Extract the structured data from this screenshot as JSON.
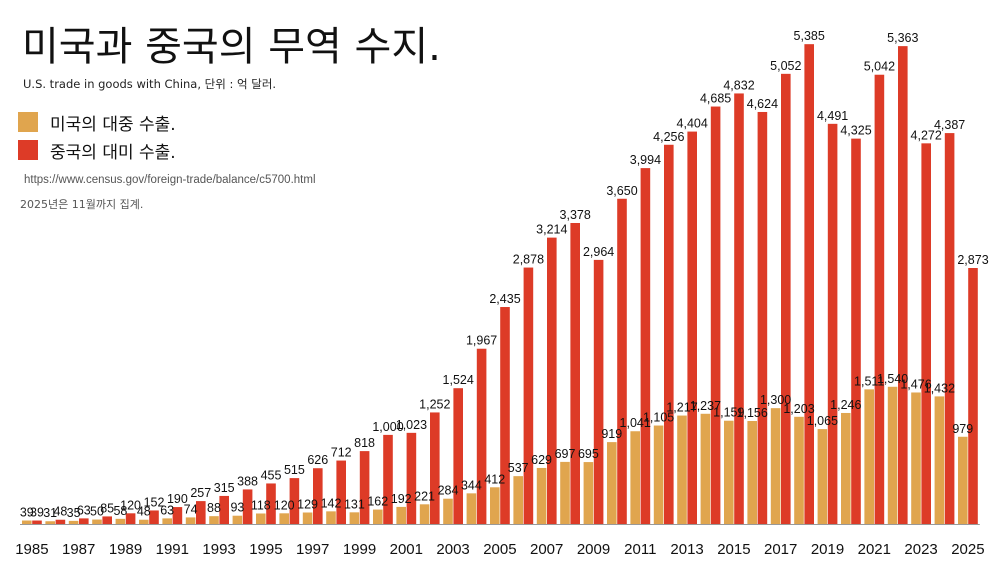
{
  "header": {
    "title": "미국과 중국의 무역 수지.",
    "subtitle": "U.S. trade in goods with China, 단위 : 억 달러."
  },
  "legend": [
    {
      "label": "미국의 대중 수출.",
      "color": "#E0A54E"
    },
    {
      "label": "중국의 대미 수출.",
      "color": "#DD3B27"
    }
  ],
  "source": "https://www.census.gov/foreign-trade/balance/c5700.html",
  "note": "2025년은 11월까지 집계.",
  "chart_data": {
    "type": "bar",
    "title": "미국과 중국의 무역 수지.",
    "subtitle": "U.S. trade in goods with China, 단위 : 억 달러.",
    "xlabel": "",
    "ylabel": "",
    "unit": "억 달러",
    "ylim": [
      0,
      5800
    ],
    "grid": false,
    "legend_position": "top-left",
    "categories": [
      "1985",
      "1986",
      "1987",
      "1988",
      "1989",
      "1990",
      "1991",
      "1992",
      "1993",
      "1994",
      "1995",
      "1996",
      "1997",
      "1998",
      "1999",
      "2000",
      "2001",
      "2002",
      "2003",
      "2004",
      "2005",
      "2006",
      "2007",
      "2008",
      "2009",
      "2010",
      "2011",
      "2012",
      "2013",
      "2014",
      "2015",
      "2016",
      "2017",
      "2018",
      "2019",
      "2020",
      "2021",
      "2022",
      "2023",
      "2024",
      "2025"
    ],
    "tick_labels": [
      "1985",
      "1987",
      "1989",
      "1991",
      "1993",
      "1995",
      "1997",
      "1999",
      "2001",
      "2003",
      "2005",
      "2007",
      "2009",
      "2011",
      "2013",
      "2015",
      "2017",
      "2019",
      "2021",
      "2023",
      "2025"
    ],
    "series": [
      {
        "name": "미국의 대중 수출.",
        "color": "#E0A54E",
        "values": [
          39,
          31,
          35,
          50,
          58,
          48,
          63,
          74,
          88,
          93,
          118,
          120,
          129,
          142,
          131,
          162,
          192,
          221,
          284,
          344,
          412,
          537,
          629,
          697,
          695,
          919,
          1041,
          1105,
          1217,
          1237,
          1159,
          1156,
          1300,
          1203,
          1065,
          1246,
          1511,
          1540,
          1476,
          1432,
          979
        ]
      },
      {
        "name": "중국의 대미 수출.",
        "color": "#DD3B27",
        "values": [
          39,
          48,
          63,
          85,
          120,
          152,
          190,
          257,
          315,
          388,
          455,
          515,
          626,
          712,
          818,
          1000,
          1023,
          1252,
          1524,
          1967,
          2435,
          2878,
          3214,
          3378,
          2964,
          3650,
          3994,
          4256,
          4404,
          4685,
          4832,
          4624,
          5052,
          5385,
          4491,
          4325,
          5042,
          5363,
          4272,
          4387,
          2873
        ]
      }
    ]
  }
}
